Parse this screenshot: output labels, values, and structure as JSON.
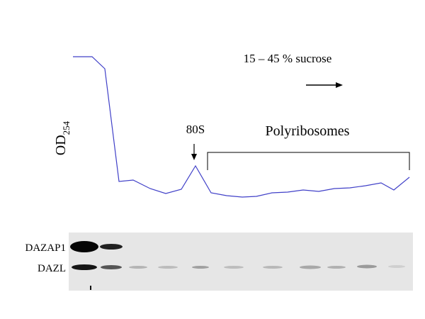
{
  "profile": {
    "axis_label": "OD",
    "axis_label_subscript": "254",
    "gradient_label": "15 – 45 % sucrose",
    "peak_label": "80S",
    "polysome_label": "Polyribosomes"
  },
  "blot": {
    "rows": [
      "DAZAP1",
      "DAZL"
    ]
  }
}
